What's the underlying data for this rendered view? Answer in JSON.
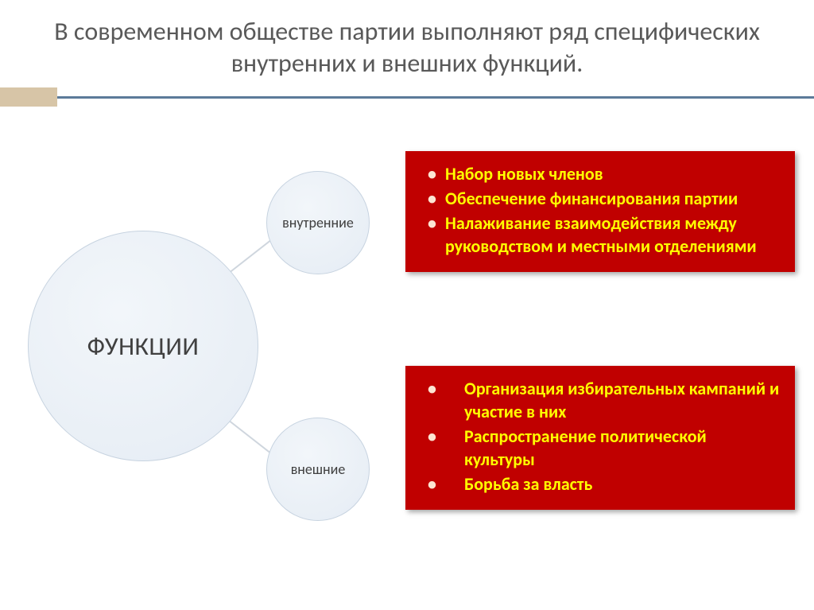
{
  "title": "В современном обществе партии выполняют ряд специфических внутренних и внешних функций.",
  "title_color": "#595959",
  "title_fontsize": 32,
  "accent_block_color": "#d7c5a7",
  "accent_line_color": "#5c7a99",
  "diagram": {
    "main_label": "ФУНКЦИИ",
    "inner_label": "внутренние",
    "outer_label": "внешние",
    "circle_fill": "#e5ecf4",
    "circle_stroke": "#c7d3e0",
    "circle_text_color": "#404040",
    "connector_color": "#cfd6de"
  },
  "boxes": {
    "bg": "#c00000",
    "text_color": "#ffff00",
    "bullet_color": "#fde5d3",
    "inner_items": [
      "Набор новых членов",
      "Обеспечение финансирования партии",
      "Налаживание взаимодействия между руководством и местными отделениями"
    ],
    "outer_items": [
      "Организация избирательных кампаний и участие в них",
      "Распространение политической культуры",
      "Борьба за власть"
    ]
  }
}
